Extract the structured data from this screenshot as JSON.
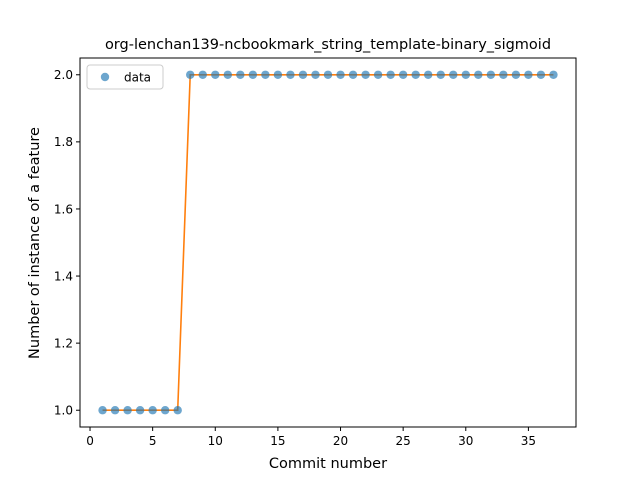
{
  "chart_data": {
    "type": "scatter",
    "title": "org-lenchan139-ncbookmark_string_template-binary_sigmoid",
    "xlabel": "Commit number",
    "ylabel": "Number of instance of a feature",
    "xlim": [
      -0.8,
      38.8
    ],
    "ylim": [
      0.95,
      2.05
    ],
    "xticks": [
      0,
      5,
      10,
      15,
      20,
      25,
      30,
      35
    ],
    "yticks": [
      1.0,
      1.2,
      1.4,
      1.6,
      1.8,
      2.0
    ],
    "ytick_labels": [
      "1.0",
      "1.2",
      "1.4",
      "1.6",
      "1.8",
      "2.0"
    ],
    "legend": {
      "placement": "top-left",
      "entries": [
        "data"
      ]
    },
    "grid": false,
    "series": [
      {
        "name": "data",
        "style": "markers",
        "color": "#1f77b4",
        "x": [
          1,
          2,
          3,
          4,
          5,
          6,
          7,
          8,
          9,
          10,
          11,
          12,
          13,
          14,
          15,
          16,
          17,
          18,
          19,
          20,
          21,
          22,
          23,
          24,
          25,
          26,
          27,
          28,
          29,
          30,
          31,
          32,
          33,
          34,
          35,
          36,
          37
        ],
        "y": [
          1,
          1,
          1,
          1,
          1,
          1,
          1,
          2,
          2,
          2,
          2,
          2,
          2,
          2,
          2,
          2,
          2,
          2,
          2,
          2,
          2,
          2,
          2,
          2,
          2,
          2,
          2,
          2,
          2,
          2,
          2,
          2,
          2,
          2,
          2,
          2,
          2
        ]
      },
      {
        "style": "line",
        "color": "#ff7f0e",
        "x": [
          1,
          2,
          3,
          4,
          5,
          6,
          7,
          8,
          9,
          10,
          11,
          12,
          13,
          14,
          15,
          16,
          17,
          18,
          19,
          20,
          21,
          22,
          23,
          24,
          25,
          26,
          27,
          28,
          29,
          30,
          31,
          32,
          33,
          34,
          35,
          36,
          37
        ],
        "y": [
          1,
          1,
          1,
          1,
          1,
          1,
          1,
          2,
          2,
          2,
          2,
          2,
          2,
          2,
          2,
          2,
          2,
          2,
          2,
          2,
          2,
          2,
          2,
          2,
          2,
          2,
          2,
          2,
          2,
          2,
          2,
          2,
          2,
          2,
          2,
          2,
          2
        ]
      }
    ]
  }
}
